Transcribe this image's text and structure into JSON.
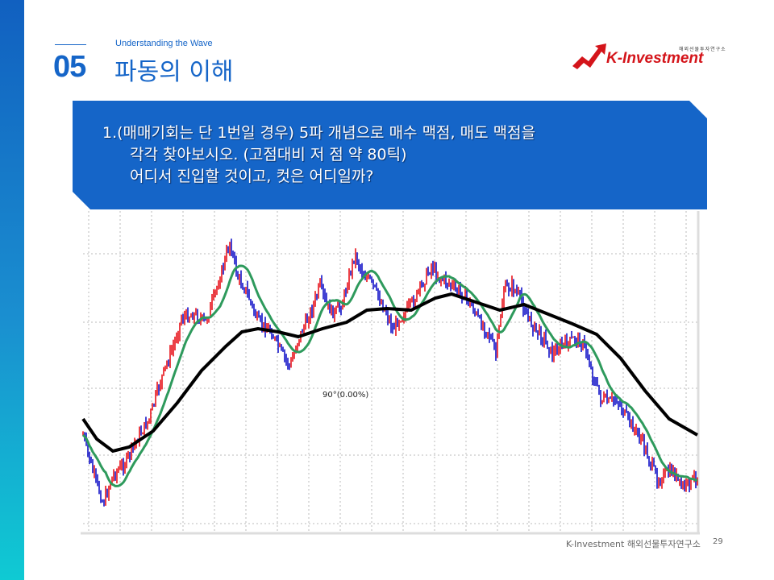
{
  "header": {
    "subtitle": "Understanding the Wave",
    "section_number": "05",
    "title": "파동의 이해"
  },
  "logo": {
    "name": "K-Investment",
    "tagline": "해외선물투자연구소"
  },
  "question": {
    "lines": [
      "1.(매매기회는 단 1번일 경우) 5파 개념으로 매수 맥점, 매도 맥점을",
      "각각 찾아보시오. (고점대비 저 점 약 80틱)",
      "어디서 진입할 것이고, 컷은 어디일까?"
    ]
  },
  "chart": {
    "annotation": "90°(0.00%)",
    "colors": {
      "up": "#e8131b",
      "down": "#1313c8",
      "fast_ma": "#2e9a5c",
      "slow_ma": "#000000"
    }
  },
  "footer": {
    "text": "K-Investment 해외선물투자연구소",
    "page": "29"
  }
}
